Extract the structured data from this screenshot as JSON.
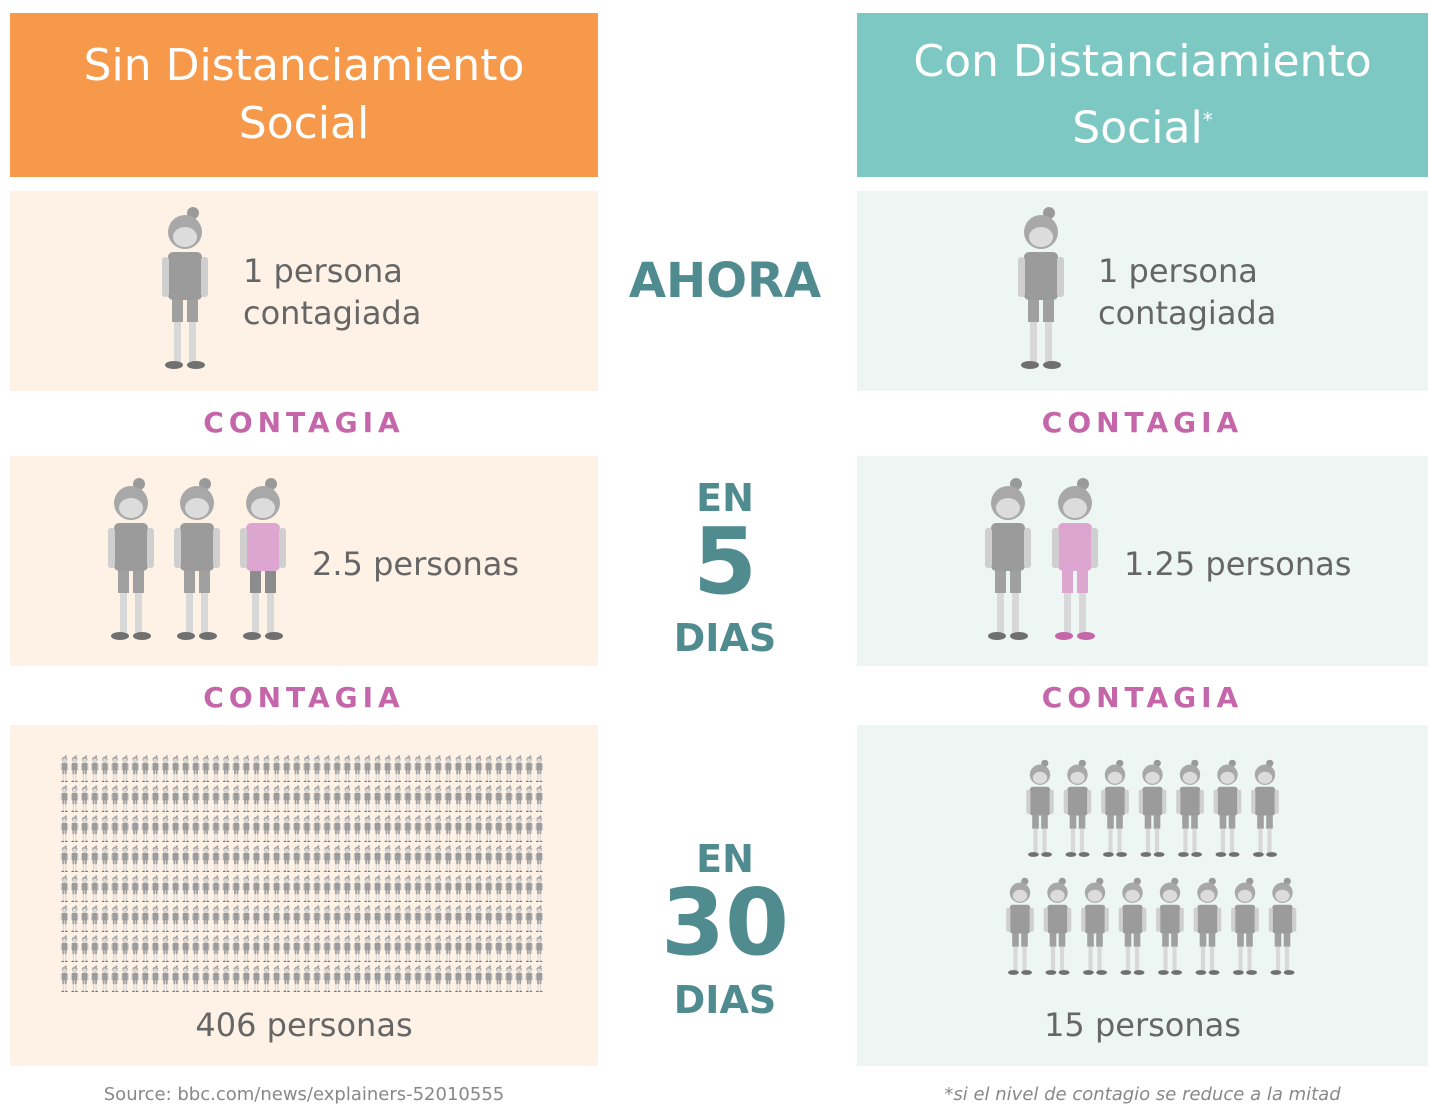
{
  "left": {
    "header": {
      "lines": [
        "Sin Distanciamiento",
        "Social"
      ]
    },
    "now": {
      "lines": [
        "1 persona",
        "contagiada"
      ]
    },
    "connector1": "CONTAGIA",
    "day5": "2.5 personas",
    "connector2": "CONTAGIA",
    "day30": "406 personas"
  },
  "right": {
    "header": {
      "lines": [
        "Con Distanciamiento",
        "Social"
      ],
      "mark": "*"
    },
    "now": {
      "lines": [
        "1 persona",
        "contagiada"
      ]
    },
    "connector1": "CONTAGIA",
    "day5": "1.25 personas",
    "connector2": "CONTAGIA",
    "day30": "15 personas"
  },
  "middle": {
    "now": "AHORA",
    "day5": {
      "top": "EN",
      "number": "5",
      "bottom": "DIAS"
    },
    "day30": {
      "top": "EN",
      "number": "30",
      "bottom": "DIAS"
    }
  },
  "footer": {
    "source": "Source: bbc.com/news/explainers-52010555",
    "note": "*si el nivel de contagio se reduce a la mitad"
  }
}
